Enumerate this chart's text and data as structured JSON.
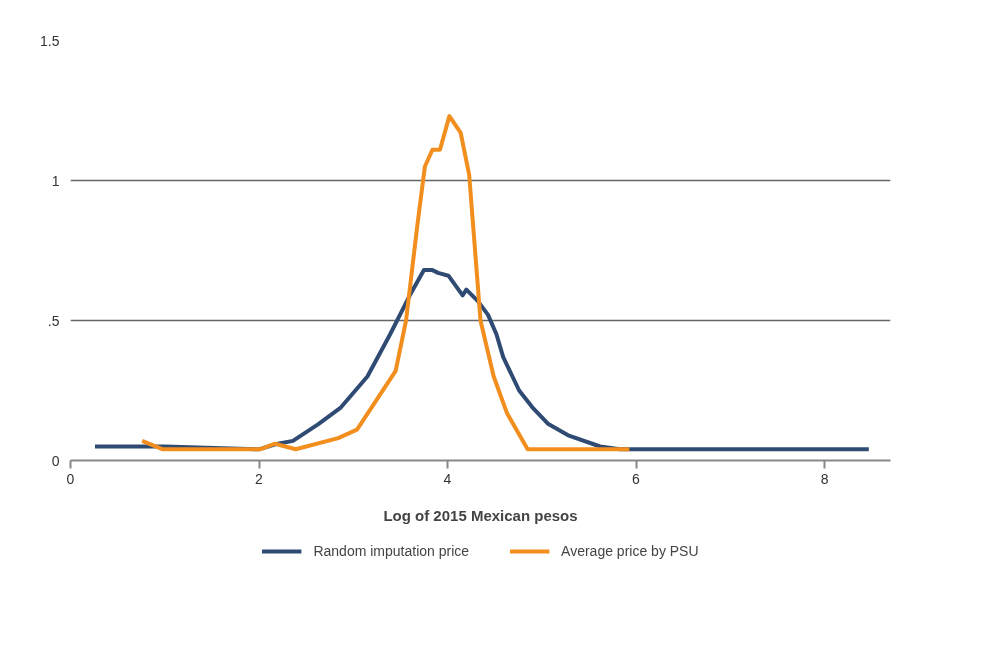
{
  "chart_data": {
    "type": "line",
    "xlabel": "Log of 2015 Mexican pesos",
    "xlim": [
      0,
      8.7
    ],
    "xticks": [
      0,
      2,
      4,
      6,
      8
    ],
    "ylim": [
      0,
      1.5
    ],
    "yticks": [
      {
        "value": 0,
        "label": "0"
      },
      {
        "value": 0.5,
        "label": ".5"
      },
      {
        "value": 1,
        "label": "1"
      },
      {
        "value": 1.5,
        "label": "1.5"
      }
    ],
    "grid": "y",
    "legend": "bottom",
    "line_style": "solid",
    "marker": "none",
    "series": [
      {
        "name": "Random imputation price",
        "color": "#2f4b73",
        "x": [
          0.26,
          1.0,
          2.0,
          2.2,
          2.36,
          2.63,
          2.87,
          3.15,
          3.39,
          3.6,
          3.75,
          3.84,
          3.9,
          4.01,
          4.16,
          4.2,
          4.32,
          4.43,
          4.52,
          4.59,
          4.76,
          4.9,
          5.07,
          5.28,
          5.62,
          5.83,
          7.0,
          8.47
        ],
        "values": [
          0.05,
          0.05,
          0.04,
          0.06,
          0.07,
          0.13,
          0.19,
          0.3,
          0.45,
          0.59,
          0.68,
          0.68,
          0.67,
          0.66,
          0.59,
          0.61,
          0.57,
          0.52,
          0.45,
          0.37,
          0.25,
          0.19,
          0.13,
          0.09,
          0.05,
          0.04,
          0.04,
          0.04
        ]
      },
      {
        "name": "Average price by PSU",
        "color": "#f28e1e",
        "x": [
          0.76,
          0.98,
          2.01,
          2.17,
          2.39,
          2.84,
          3.04,
          3.45,
          3.56,
          3.68,
          3.76,
          3.84,
          3.92,
          4.02,
          4.14,
          4.23,
          4.35,
          4.49,
          4.63,
          4.85,
          5.93
        ],
        "values": [
          0.07,
          0.04,
          0.04,
          0.06,
          0.04,
          0.08,
          0.11,
          0.32,
          0.5,
          0.84,
          1.05,
          1.11,
          1.11,
          1.23,
          1.17,
          1.02,
          0.5,
          0.3,
          0.17,
          0.04,
          0.04
        ]
      }
    ]
  }
}
